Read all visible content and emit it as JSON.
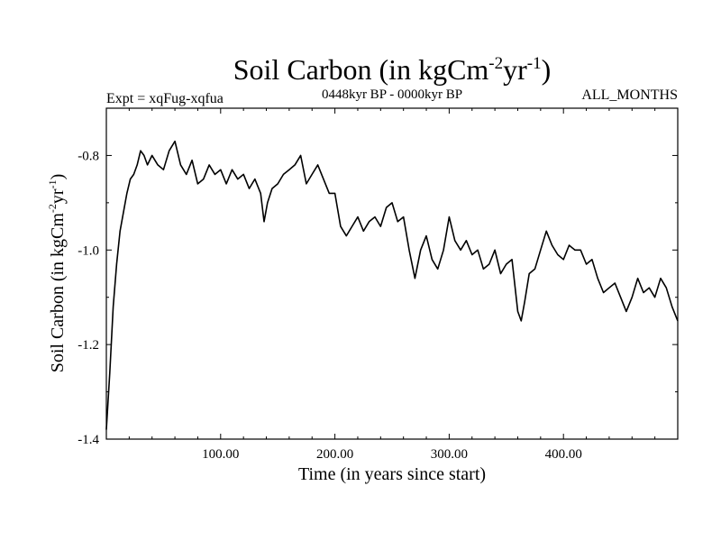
{
  "chart_data": {
    "type": "line",
    "title_base": "Soil Carbon (in kgCm",
    "title_exp1": "-2",
    "title_mid": "yr",
    "title_exp2": "-1",
    "title_end": ")",
    "left_label": "Expt = xqFug-xqfua",
    "center_label": "0448kyr BP - 0000kyr BP",
    "right_label": "ALL_MONTHS",
    "xlabel": "Time (in years since start)",
    "ylabel_base": "Soil Carbon (in kgCm",
    "ylabel_exp1": "-2",
    "ylabel_mid": "yr",
    "ylabel_exp2": "-1",
    "ylabel_end": ")",
    "xlim": [
      0,
      500
    ],
    "ylim": [
      -1.4,
      -0.7
    ],
    "x_ticks": [
      100,
      200,
      300,
      400
    ],
    "x_tick_labels": [
      "100.00",
      "200.00",
      "300.00",
      "400.00"
    ],
    "y_ticks": [
      -1.4,
      -1.2,
      -1.0,
      -0.8
    ],
    "y_tick_labels": [
      "-1.4",
      "-1.2",
      "-1.0",
      "-0.8"
    ],
    "series": [
      {
        "name": "Soil Carbon",
        "color": "#000000",
        "x": [
          0,
          3,
          6,
          9,
          12,
          15,
          18,
          21,
          24,
          27,
          30,
          33,
          36,
          40,
          45,
          50,
          55,
          60,
          65,
          70,
          75,
          80,
          85,
          90,
          95,
          100,
          105,
          110,
          115,
          120,
          125,
          130,
          135,
          138,
          141,
          145,
          150,
          155,
          160,
          165,
          170,
          175,
          180,
          185,
          190,
          195,
          200,
          205,
          210,
          215,
          220,
          225,
          230,
          235,
          240,
          245,
          250,
          255,
          260,
          265,
          270,
          275,
          280,
          285,
          290,
          295,
          300,
          305,
          310,
          315,
          320,
          325,
          330,
          335,
          340,
          345,
          350,
          355,
          360,
          363,
          366,
          370,
          375,
          380,
          385,
          390,
          395,
          400,
          405,
          410,
          415,
          420,
          425,
          430,
          435,
          440,
          445,
          450,
          455,
          460,
          465,
          470,
          475,
          480,
          485,
          490,
          495,
          500
        ],
        "values": [
          -1.38,
          -1.26,
          -1.12,
          -1.03,
          -0.96,
          -0.92,
          -0.88,
          -0.85,
          -0.84,
          -0.82,
          -0.79,
          -0.8,
          -0.82,
          -0.8,
          -0.82,
          -0.83,
          -0.79,
          -0.77,
          -0.82,
          -0.84,
          -0.81,
          -0.86,
          -0.85,
          -0.82,
          -0.84,
          -0.83,
          -0.86,
          -0.83,
          -0.85,
          -0.84,
          -0.87,
          -0.85,
          -0.88,
          -0.94,
          -0.9,
          -0.87,
          -0.86,
          -0.84,
          -0.83,
          -0.82,
          -0.8,
          -0.86,
          -0.84,
          -0.82,
          -0.85,
          -0.88,
          -0.88,
          -0.95,
          -0.97,
          -0.95,
          -0.93,
          -0.96,
          -0.94,
          -0.93,
          -0.95,
          -0.91,
          -0.9,
          -0.94,
          -0.93,
          -1.0,
          -1.06,
          -1.0,
          -0.97,
          -1.02,
          -1.04,
          -1.0,
          -0.93,
          -0.98,
          -1.0,
          -0.98,
          -1.01,
          -1.0,
          -1.04,
          -1.03,
          -1.0,
          -1.05,
          -1.03,
          -1.02,
          -1.13,
          -1.15,
          -1.11,
          -1.05,
          -1.04,
          -1.0,
          -0.96,
          -0.99,
          -1.01,
          -1.02,
          -0.99,
          -1.0,
          -1.0,
          -1.03,
          -1.02,
          -1.06,
          -1.09,
          -1.08,
          -1.07,
          -1.1,
          -1.13,
          -1.1,
          -1.06,
          -1.09,
          -1.08,
          -1.1,
          -1.06,
          -1.08,
          -1.12,
          -1.15
        ]
      }
    ]
  }
}
